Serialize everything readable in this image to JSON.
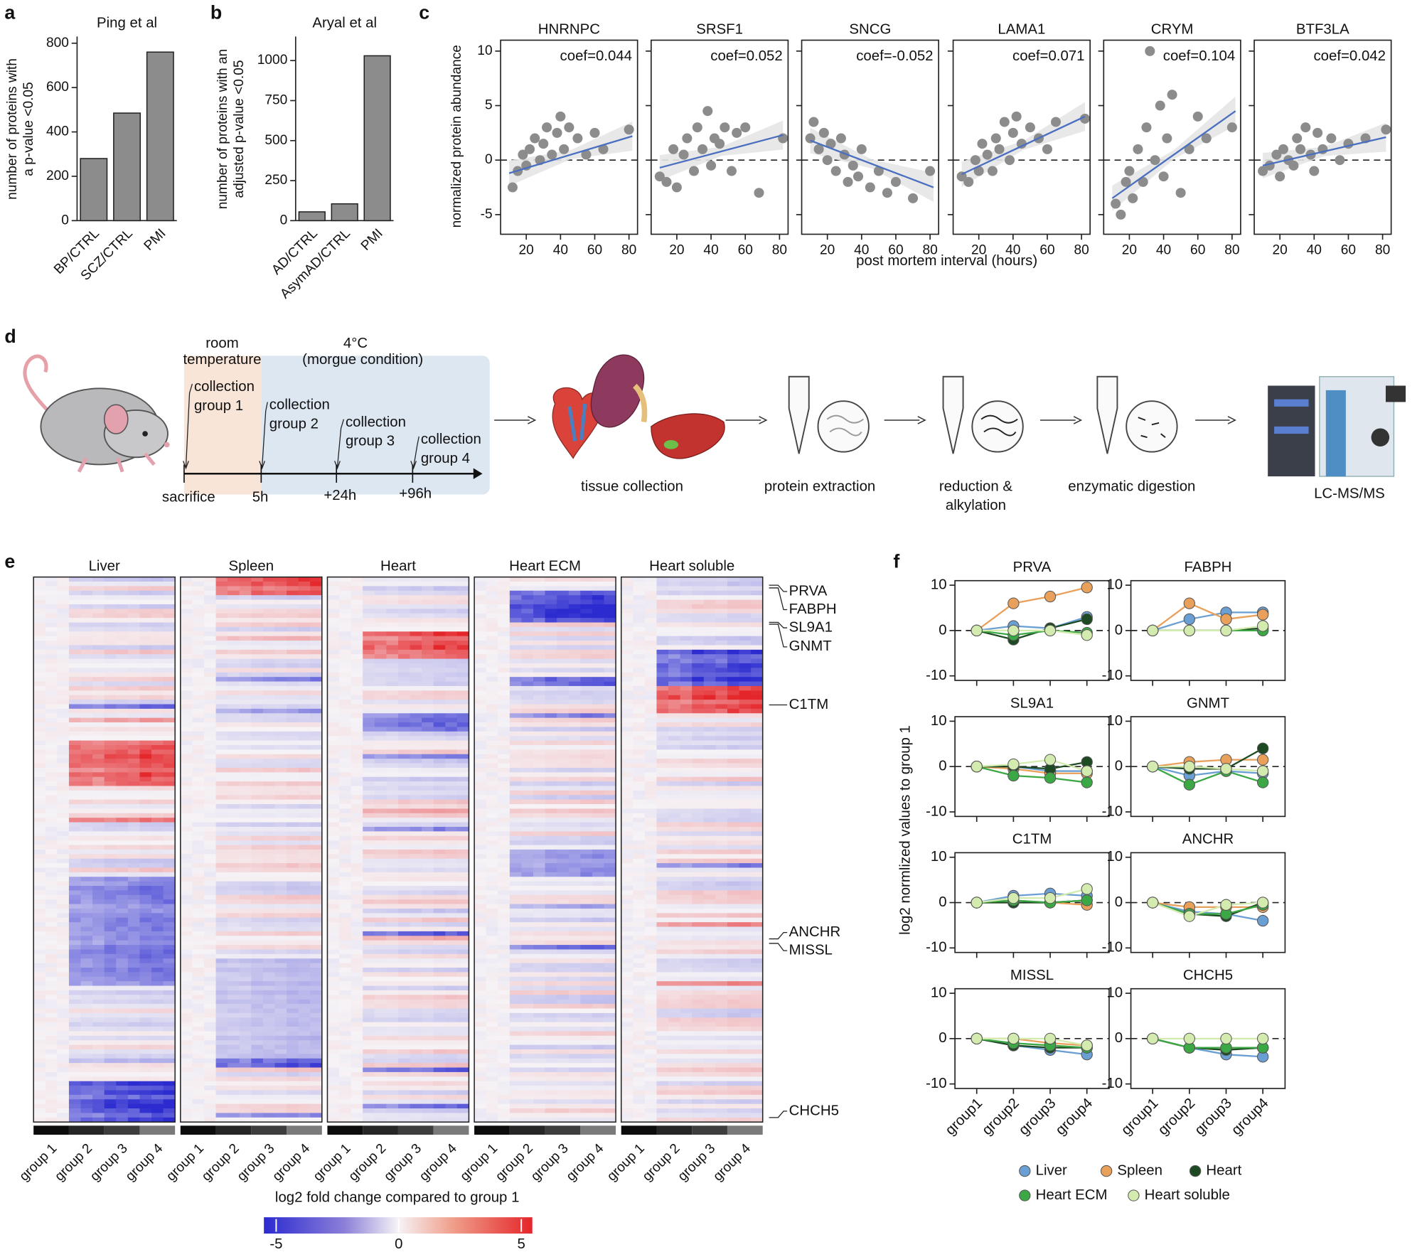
{
  "panel_labels": [
    "a",
    "b",
    "c",
    "d",
    "e",
    "f"
  ],
  "chart_data": [
    {
      "type": "bar",
      "title": "Ping et al",
      "ylabel_lines": [
        "number of proteins with",
        "a p-value <0.05"
      ],
      "categories": [
        "BP/CTRL",
        "SCZ/CTRL",
        "PMI"
      ],
      "values": [
        280,
        485,
        760
      ],
      "color": "#8c8c8c",
      "ylim": [
        0,
        830
      ],
      "yticks": [
        0,
        200,
        400,
        600,
        800
      ]
    },
    {
      "type": "bar",
      "title": "Aryal et al",
      "ylabel_lines": [
        "number of proteins with an",
        "adjusted p-value <0.05"
      ],
      "categories": [
        "AD/CTRL",
        "AsymAD/CTRL",
        "PMI"
      ],
      "values": [
        55,
        105,
        1030
      ],
      "color": "#8c8c8c",
      "ylim": [
        0,
        1150
      ],
      "yticks": [
        0,
        250,
        500,
        750,
        1000
      ]
    },
    {
      "type": "scatter",
      "title": "HNRNPC",
      "annotation": "coef=0.044",
      "x": [
        12,
        15,
        18,
        20,
        22,
        25,
        28,
        30,
        32,
        35,
        38,
        40,
        42,
        45,
        50,
        55,
        60,
        65,
        80
      ],
      "y": [
        -2.5,
        -1,
        0.5,
        -0.5,
        1,
        2,
        0,
        1.5,
        3,
        0.5,
        2.5,
        4,
        1,
        3,
        2,
        0.5,
        2.5,
        1,
        2.8
      ],
      "fit": {
        "x": [
          10,
          82
        ],
        "y": [
          -1.2,
          2.2
        ]
      },
      "hline": 0,
      "xlim": [
        5,
        85
      ],
      "ylim": [
        -6.8,
        11
      ],
      "xticks": [
        20,
        40,
        60,
        80
      ],
      "yticks": [
        -5,
        0,
        5,
        10
      ],
      "color": "#8c8c8c",
      "fit_color": "#4a6fc0"
    },
    {
      "type": "scatter",
      "title": "SRSF1",
      "annotation": "coef=0.052",
      "x": [
        10,
        14,
        18,
        20,
        24,
        26,
        30,
        32,
        35,
        38,
        40,
        42,
        45,
        48,
        52,
        55,
        60,
        68,
        82
      ],
      "y": [
        -1.5,
        -2,
        1,
        -2.5,
        0.5,
        2,
        -1,
        3,
        1,
        4.5,
        -0.5,
        2,
        1.5,
        3,
        -1,
        2.5,
        3,
        -3,
        2
      ],
      "fit": {
        "x": [
          10,
          82
        ],
        "y": [
          -0.7,
          2.3
        ]
      },
      "hline": 0,
      "xlim": [
        5,
        85
      ],
      "ylim": [
        -6.8,
        11
      ],
      "xticks": [
        20,
        40,
        60,
        80
      ],
      "yticks": [
        -5,
        0,
        5,
        10
      ],
      "color": "#8c8c8c",
      "fit_color": "#4a6fc0"
    },
    {
      "type": "scatter",
      "title": "SNCG",
      "annotation": "coef=-0.052",
      "x": [
        10,
        12,
        15,
        18,
        20,
        22,
        25,
        28,
        30,
        32,
        35,
        38,
        40,
        45,
        50,
        55,
        60,
        70,
        80
      ],
      "y": [
        2,
        3.5,
        1,
        2.5,
        0,
        1.5,
        -1,
        2,
        0.5,
        -2,
        -0.5,
        -1.5,
        1,
        -2.5,
        -1,
        -3,
        -2,
        -3.5,
        -1
      ],
      "fit": {
        "x": [
          10,
          82
        ],
        "y": [
          1.8,
          -2.5
        ]
      },
      "hline": 0,
      "xlim": [
        5,
        85
      ],
      "ylim": [
        -6.8,
        11
      ],
      "xticks": [
        20,
        40,
        60,
        80
      ],
      "yticks": [
        -5,
        0,
        5,
        10
      ],
      "color": "#8c8c8c",
      "fit_color": "#4a6fc0"
    },
    {
      "type": "scatter",
      "title": "LAMA1",
      "annotation": "coef=0.071",
      "x": [
        10,
        14,
        18,
        20,
        22,
        25,
        28,
        30,
        32,
        35,
        38,
        40,
        42,
        45,
        50,
        55,
        60,
        65,
        82
      ],
      "y": [
        -1.5,
        -2,
        0,
        -1,
        1.5,
        0.5,
        -1,
        2,
        1,
        3.5,
        0,
        2.5,
        4,
        1.5,
        3,
        2,
        1,
        3.5,
        3.8
      ],
      "fit": {
        "x": [
          10,
          82
        ],
        "y": [
          -1.3,
          4
        ]
      },
      "hline": 0,
      "xlim": [
        5,
        85
      ],
      "ylim": [
        -6.8,
        11
      ],
      "xticks": [
        20,
        40,
        60,
        80
      ],
      "yticks": [
        -5,
        0,
        5,
        10
      ],
      "color": "#8c8c8c",
      "fit_color": "#4a6fc0"
    },
    {
      "type": "scatter",
      "title": "CRYM",
      "annotation": "coef=0.104",
      "x": [
        12,
        15,
        18,
        20,
        22,
        25,
        28,
        30,
        32,
        35,
        38,
        40,
        42,
        45,
        50,
        55,
        60,
        65,
        80
      ],
      "y": [
        -4,
        -5,
        -2,
        -1,
        -3.5,
        1,
        -2,
        3,
        10,
        0,
        5,
        -1.5,
        2,
        6,
        -3,
        1,
        4,
        2,
        3
      ],
      "fit": {
        "x": [
          10,
          82
        ],
        "y": [
          -3.5,
          4.5
        ]
      },
      "hline": 0,
      "xlim": [
        5,
        85
      ],
      "ylim": [
        -6.8,
        11
      ],
      "xticks": [
        20,
        40,
        60,
        80
      ],
      "yticks": [
        -5,
        0,
        5,
        10
      ],
      "color": "#8c8c8c",
      "fit_color": "#4a6fc0"
    },
    {
      "type": "scatter",
      "title": "BTF3LA",
      "annotation": "coef=0.042",
      "x": [
        10,
        14,
        18,
        20,
        22,
        25,
        28,
        30,
        32,
        35,
        38,
        40,
        42,
        45,
        50,
        55,
        60,
        70,
        82
      ],
      "y": [
        -1,
        -0.5,
        0.5,
        -1.5,
        1,
        0,
        -0.5,
        2,
        1,
        3,
        0.5,
        -1,
        2.5,
        1,
        2,
        0,
        1.5,
        2,
        2.8
      ],
      "fit": {
        "x": [
          10,
          82
        ],
        "y": [
          -0.5,
          2.1
        ]
      },
      "hline": 0,
      "xlim": [
        5,
        85
      ],
      "ylim": [
        -6.8,
        11
      ],
      "xticks": [
        20,
        40,
        60,
        80
      ],
      "yticks": [
        -5,
        0,
        5,
        10
      ],
      "color": "#8c8c8c",
      "fit_color": "#4a6fc0"
    },
    {
      "type": "line",
      "title": "PRVA",
      "categories": [
        "group1",
        "group2",
        "group3",
        "group4"
      ],
      "hline": 0,
      "ylim": [
        -11,
        11
      ],
      "yticks": [
        -10,
        0,
        10
      ],
      "series": [
        {
          "name": "Liver",
          "color": "#6a9fd4",
          "values": [
            0,
            1,
            0.5,
            3
          ]
        },
        {
          "name": "Spleen",
          "color": "#e8a05a",
          "values": [
            0,
            6,
            7.5,
            9.5
          ]
        },
        {
          "name": "Heart",
          "color": "#1d4a22",
          "values": [
            0,
            -2,
            0.5,
            2.5
          ]
        },
        {
          "name": "Heart ECM",
          "color": "#3ca845",
          "values": [
            0,
            -1,
            0,
            -0.5
          ]
        },
        {
          "name": "Heart soluble",
          "color": "#d3ebae",
          "values": [
            0,
            0,
            0,
            -1
          ]
        }
      ]
    },
    {
      "type": "line",
      "title": "FABPH",
      "categories": [
        "group1",
        "group2",
        "group3",
        "group4"
      ],
      "hline": 0,
      "ylim": [
        -11,
        11
      ],
      "yticks": [
        -10,
        0,
        10
      ],
      "series": [
        {
          "name": "Liver",
          "color": "#6a9fd4",
          "values": [
            0,
            2.5,
            4,
            4
          ]
        },
        {
          "name": "Spleen",
          "color": "#e8a05a",
          "values": [
            0,
            6,
            2.5,
            3.5
          ]
        },
        {
          "name": "Heart",
          "color": "#1d4a22",
          "values": [
            0,
            0,
            0,
            0.5
          ]
        },
        {
          "name": "Heart ECM",
          "color": "#3ca845",
          "values": [
            0,
            0,
            0,
            0
          ]
        },
        {
          "name": "Heart soluble",
          "color": "#d3ebae",
          "values": [
            0,
            0,
            0,
            1
          ]
        }
      ]
    },
    {
      "type": "line",
      "title": "SL9A1",
      "categories": [
        "group1",
        "group2",
        "group3",
        "group4"
      ],
      "hline": 0,
      "ylim": [
        -11,
        11
      ],
      "yticks": [
        -10,
        0,
        10
      ],
      "series": [
        {
          "name": "Liver",
          "color": "#6a9fd4",
          "values": [
            0,
            0,
            -1,
            -1
          ]
        },
        {
          "name": "Spleen",
          "color": "#e8a05a",
          "values": [
            0,
            -0.5,
            -1.5,
            -1.5
          ]
        },
        {
          "name": "Heart",
          "color": "#1d4a22",
          "values": [
            0,
            0,
            -0.5,
            1
          ]
        },
        {
          "name": "Heart ECM",
          "color": "#3ca845",
          "values": [
            0,
            -2,
            -2.5,
            -3.5
          ]
        },
        {
          "name": "Heart soluble",
          "color": "#d3ebae",
          "values": [
            0,
            0.5,
            1.5,
            -1
          ]
        }
      ]
    },
    {
      "type": "line",
      "title": "GNMT",
      "categories": [
        "group1",
        "group2",
        "group3",
        "group4"
      ],
      "hline": 0,
      "ylim": [
        -11,
        11
      ],
      "yticks": [
        -10,
        0,
        10
      ],
      "series": [
        {
          "name": "Liver",
          "color": "#6a9fd4",
          "values": [
            0,
            -2,
            -1,
            -1.5
          ]
        },
        {
          "name": "Spleen",
          "color": "#e8a05a",
          "values": [
            0,
            1,
            1.5,
            1.5
          ]
        },
        {
          "name": "Heart",
          "color": "#1d4a22",
          "values": [
            0,
            -0.5,
            -0.5,
            4
          ]
        },
        {
          "name": "Heart ECM",
          "color": "#3ca845",
          "values": [
            0,
            -4,
            -1,
            -3.5
          ]
        },
        {
          "name": "Heart soluble",
          "color": "#d3ebae",
          "values": [
            0,
            0,
            -0.5,
            -1
          ]
        }
      ]
    },
    {
      "type": "line",
      "title": "C1TM",
      "categories": [
        "group1",
        "group2",
        "group3",
        "group4"
      ],
      "hline": 0,
      "ylim": [
        -11,
        11
      ],
      "yticks": [
        -10,
        0,
        10
      ],
      "series": [
        {
          "name": "Liver",
          "color": "#6a9fd4",
          "values": [
            0,
            1.5,
            2,
            1.5
          ]
        },
        {
          "name": "Spleen",
          "color": "#e8a05a",
          "values": [
            0,
            0,
            0,
            -0.5
          ]
        },
        {
          "name": "Heart",
          "color": "#1d4a22",
          "values": [
            0,
            0,
            0,
            0.5
          ]
        },
        {
          "name": "Heart ECM",
          "color": "#3ca845",
          "values": [
            0,
            0.5,
            0,
            0.5
          ]
        },
        {
          "name": "Heart soluble",
          "color": "#d3ebae",
          "values": [
            0,
            1,
            1,
            3
          ]
        }
      ]
    },
    {
      "type": "line",
      "title": "ANCHR",
      "categories": [
        "group1",
        "group2",
        "group3",
        "group4"
      ],
      "hline": 0,
      "ylim": [
        -11,
        11
      ],
      "yticks": [
        -10,
        0,
        10
      ],
      "series": [
        {
          "name": "Liver",
          "color": "#6a9fd4",
          "values": [
            0,
            -2,
            -2.5,
            -4
          ]
        },
        {
          "name": "Spleen",
          "color": "#e8a05a",
          "values": [
            0,
            -1,
            -1,
            -1
          ]
        },
        {
          "name": "Heart",
          "color": "#1d4a22",
          "values": [
            0,
            -2.5,
            -3,
            0
          ]
        },
        {
          "name": "Heart ECM",
          "color": "#3ca845",
          "values": [
            0,
            -2.5,
            -2.5,
            -0.5
          ]
        },
        {
          "name": "Heart soluble",
          "color": "#d3ebae",
          "values": [
            0,
            -3,
            -0.5,
            0
          ]
        }
      ]
    },
    {
      "type": "line",
      "title": "MISSL",
      "categories": [
        "group1",
        "group2",
        "group3",
        "group4"
      ],
      "hline": 0,
      "ylim": [
        -11,
        11
      ],
      "yticks": [
        -10,
        0,
        10
      ],
      "series": [
        {
          "name": "Liver",
          "color": "#6a9fd4",
          "values": [
            0,
            -1.5,
            -2.5,
            -3.5
          ]
        },
        {
          "name": "Spleen",
          "color": "#e8a05a",
          "values": [
            0,
            0,
            -1,
            -1.5
          ]
        },
        {
          "name": "Heart",
          "color": "#1d4a22",
          "values": [
            0,
            -1.5,
            -2,
            -2
          ]
        },
        {
          "name": "Heart ECM",
          "color": "#3ca845",
          "values": [
            0,
            -1,
            -1.5,
            -2
          ]
        },
        {
          "name": "Heart soluble",
          "color": "#d3ebae",
          "values": [
            0,
            0,
            0,
            -1.5
          ]
        }
      ]
    },
    {
      "type": "line",
      "title": "CHCH5",
      "categories": [
        "group1",
        "group2",
        "group3",
        "group4"
      ],
      "hline": 0,
      "ylim": [
        -11,
        11
      ],
      "yticks": [
        -10,
        0,
        10
      ],
      "series": [
        {
          "name": "Liver",
          "color": "#6a9fd4",
          "values": [
            0,
            -2,
            -3.5,
            -4
          ]
        },
        {
          "name": "Spleen",
          "color": "#e8a05a",
          "values": [
            0,
            -2,
            -2,
            -2
          ]
        },
        {
          "name": "Heart",
          "color": "#1d4a22",
          "values": [
            0,
            -2,
            -2.5,
            -2
          ]
        },
        {
          "name": "Heart ECM",
          "color": "#3ca845",
          "values": [
            0,
            -2,
            -2,
            -2
          ]
        },
        {
          "name": "Heart soluble",
          "color": "#d3ebae",
          "values": [
            0,
            0,
            0,
            0
          ]
        }
      ]
    }
  ],
  "panel_c": {
    "ylabel": "normalized protein abundance",
    "xlabel": "post mortem interval (hours)"
  },
  "panel_f": {
    "ylabel": "log2 normlized values to group 1"
  },
  "diagram": {
    "room_temp": [
      "room",
      "temperature"
    ],
    "cold": [
      "4°C",
      "(morgue condition)"
    ],
    "collections": [
      [
        "collection",
        "group 1"
      ],
      [
        "collection",
        "group 2"
      ],
      [
        "collection",
        "group 3"
      ],
      [
        "collection",
        "group 4"
      ]
    ],
    "timepoints": [
      "sacrifice",
      "5h",
      "+24h",
      "+96h"
    ],
    "steps": [
      [
        "tissue collection"
      ],
      [
        "protein extraction"
      ],
      [
        "reduction &",
        "alkylation"
      ],
      [
        "enzymatic digestion"
      ],
      [
        "LC-MS/MS"
      ]
    ]
  },
  "heatmap": {
    "tissues": [
      "Liver",
      "Spleen",
      "Heart",
      "Heart ECM",
      "Heart soluble"
    ],
    "groups": [
      "group 1",
      "group 2",
      "group 3",
      "group 4"
    ],
    "proteins": [
      "PRVA",
      "FABPH",
      "SL9A1",
      "GNMT",
      "C1TM",
      "ANCHR",
      "MISSL",
      "CHCH5"
    ],
    "colorbar": {
      "label": "log2 fold change compared to group 1",
      "lim": [
        -5.5,
        5.45
      ],
      "ticks": [
        -5,
        0,
        5
      ]
    }
  }
}
